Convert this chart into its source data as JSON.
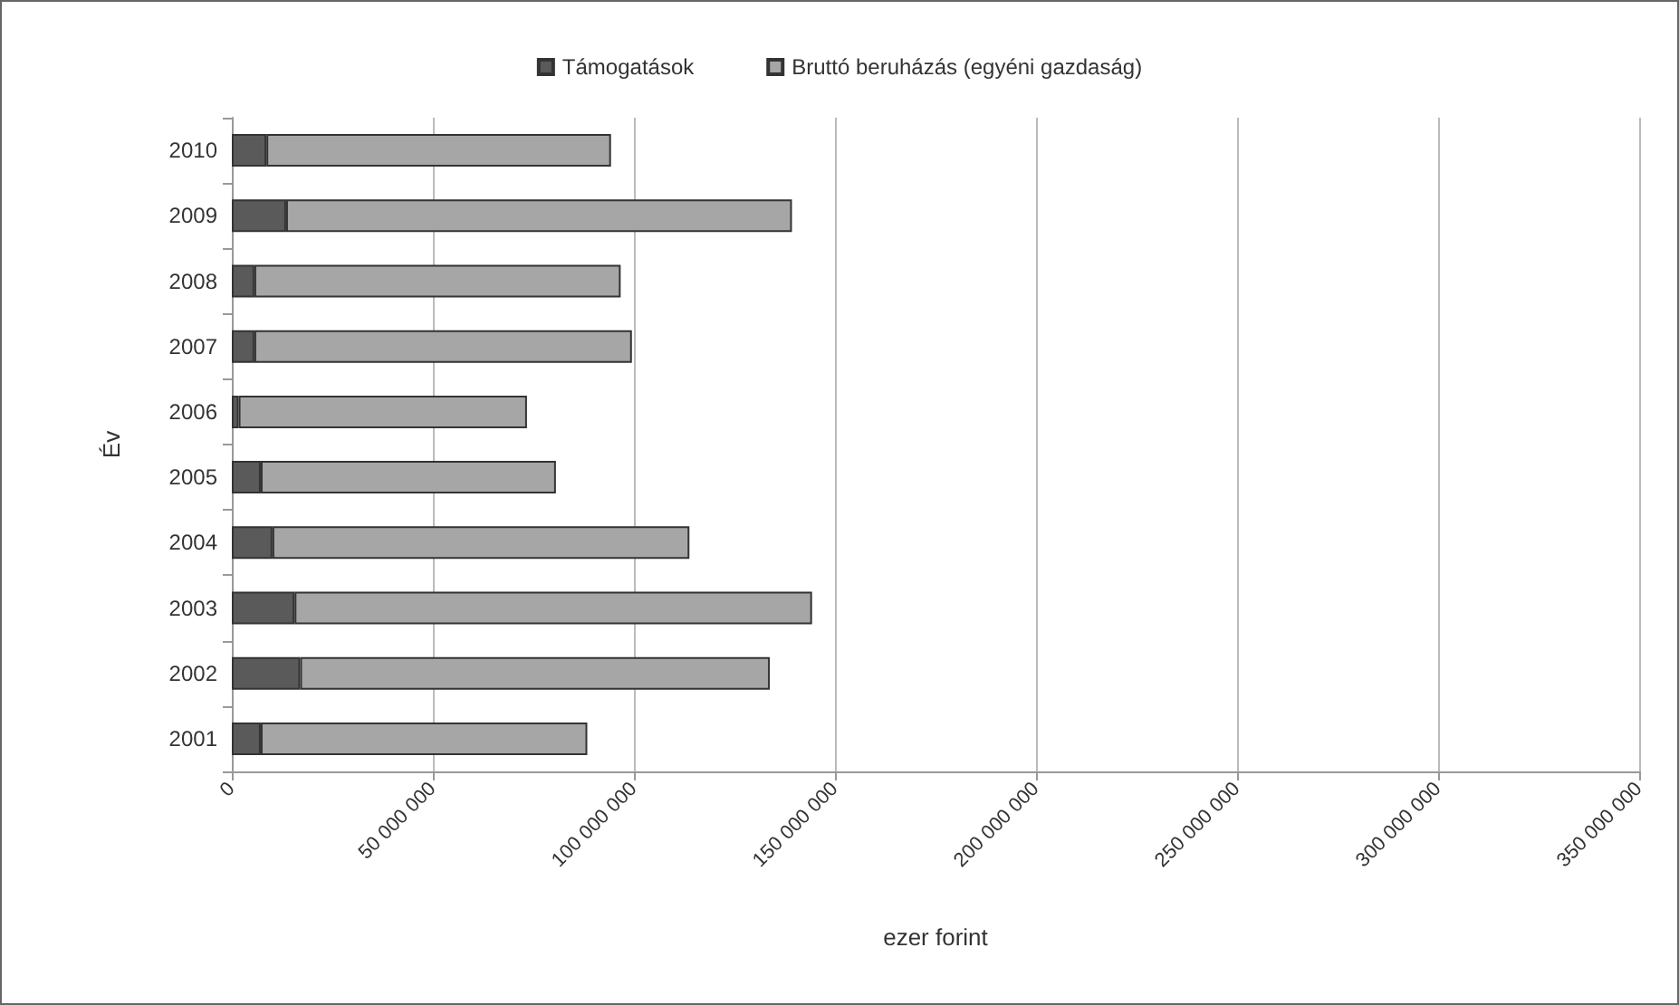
{
  "chart_data": {
    "type": "bar",
    "orientation": "horizontal",
    "stacked": true,
    "xlabel": "ezer forint",
    "ylabel": "Év",
    "categories": [
      "2010",
      "2009",
      "2008",
      "2007",
      "2006",
      "2005",
      "2004",
      "2003",
      "2002",
      "2001"
    ],
    "series": [
      {
        "name": "Támogatások",
        "color": "#5a5a5a",
        "values": [
          8600000,
          13500000,
          5600000,
          5600000,
          1700000,
          7200000,
          10100000,
          15600000,
          17000000,
          7200000
        ]
      },
      {
        "name": "Bruttó beruházás (egyéni gazdaság)",
        "color": "#a6a6a6",
        "values": [
          85700000,
          125800000,
          91100000,
          93900000,
          71700000,
          73400000,
          103700000,
          128700000,
          116800000,
          81200000
        ]
      }
    ],
    "xlim": [
      0,
      350000000
    ],
    "xticks": [
      0,
      {
        "value": 50000000,
        "label": "50 000 000"
      },
      {
        "value": 100000000,
        "label": "100 000 000"
      },
      {
        "value": 150000000,
        "label": "150 000 000"
      },
      {
        "value": 200000000,
        "label": "200 000 000"
      },
      {
        "value": 250000000,
        "label": "250 000 000"
      },
      {
        "value": 300000000,
        "label": "300 000 000"
      },
      {
        "value": 350000000,
        "label": "350 000 000"
      }
    ],
    "grid": "x",
    "legend": "top"
  }
}
